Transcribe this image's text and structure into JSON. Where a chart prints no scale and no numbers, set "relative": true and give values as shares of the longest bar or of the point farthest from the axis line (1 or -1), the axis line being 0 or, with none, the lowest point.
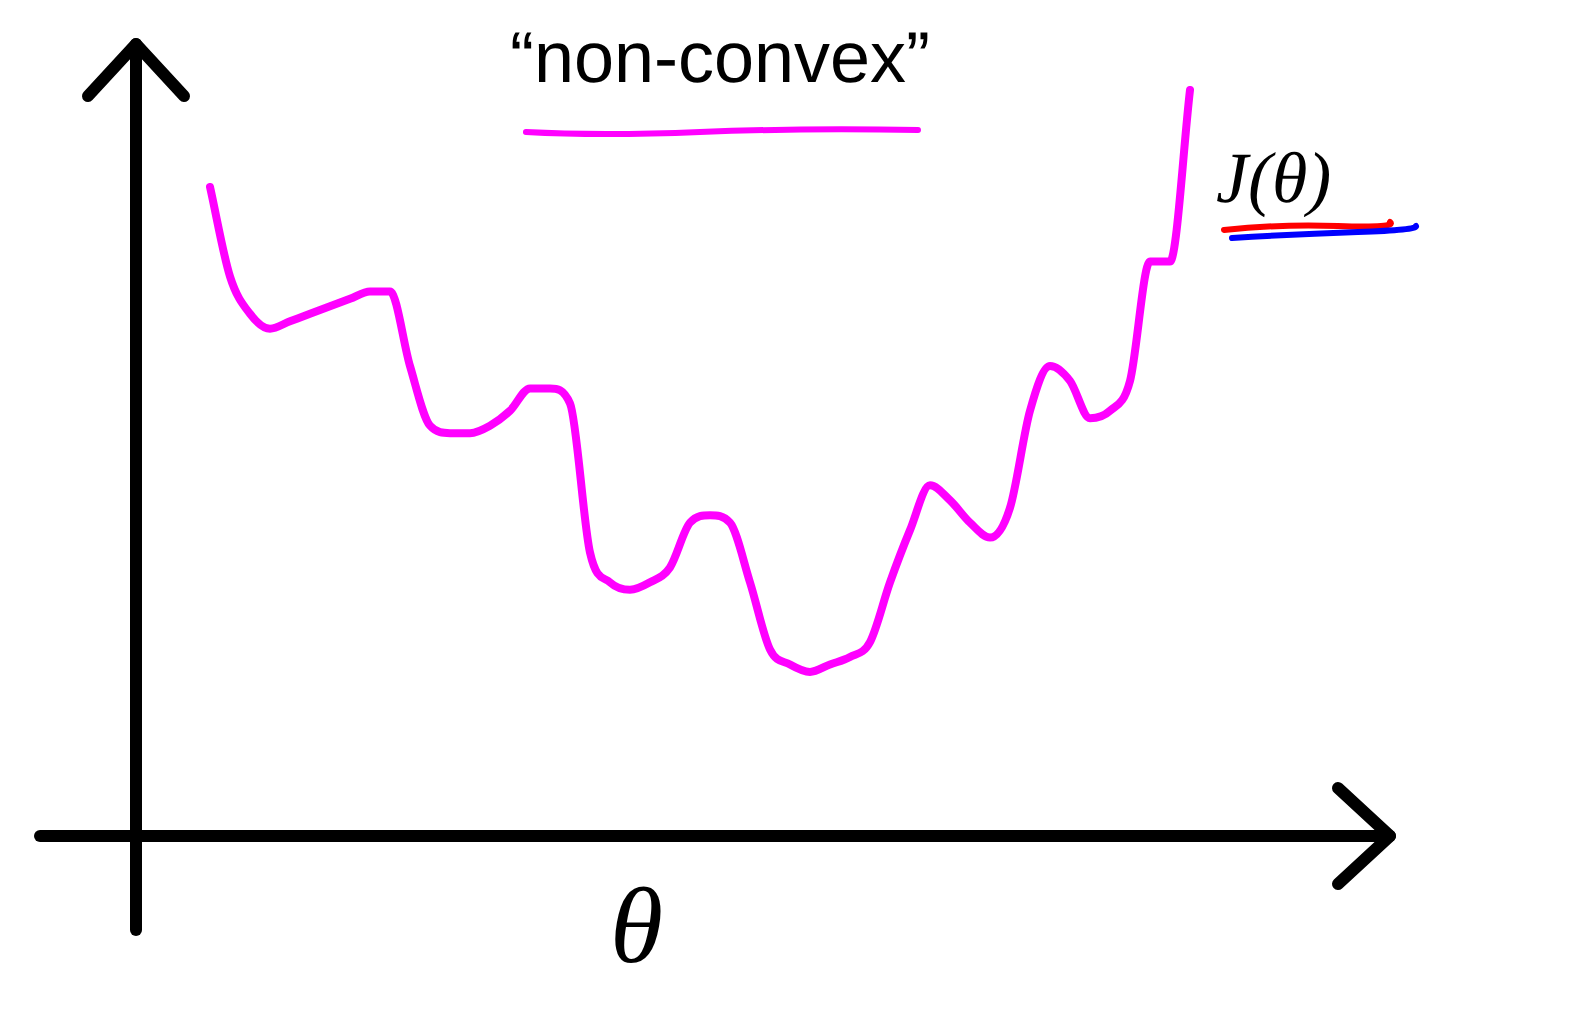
{
  "chart_data": {
    "type": "line",
    "title": "“non-convex”",
    "xlabel": "θ",
    "ylabel": "J(θ)",
    "relative": true,
    "marker": "none",
    "categories": [
      null,
      null,
      null,
      null,
      null,
      null,
      null,
      null,
      null,
      null,
      null,
      null,
      null,
      null,
      null,
      null,
      null,
      null,
      null,
      null,
      null,
      null,
      null,
      null,
      null,
      null,
      null,
      null,
      null,
      null,
      null,
      null,
      null,
      null,
      null,
      null,
      null,
      null,
      null,
      null,
      null,
      null,
      null,
      null,
      null,
      null,
      null,
      null,
      null,
      null
    ],
    "series": [
      {
        "color": "#ff00ff",
        "values": [
          0.87,
          0.75,
          0.7,
          0.68,
          0.69,
          0.7,
          0.71,
          0.72,
          0.73,
          0.73,
          0.63,
          0.55,
          0.54,
          0.54,
          0.55,
          0.57,
          0.6,
          0.6,
          0.58,
          0.38,
          0.34,
          0.33,
          0.34,
          0.36,
          0.42,
          0.43,
          0.42,
          0.34,
          0.25,
          0.23,
          0.22,
          0.23,
          0.24,
          0.26,
          0.34,
          0.41,
          0.47,
          0.45,
          0.42,
          0.4,
          0.44,
          0.57,
          0.63,
          0.61,
          0.56,
          0.57,
          0.61,
          0.77,
          0.77,
          1
        ]
      }
    ]
  }
}
